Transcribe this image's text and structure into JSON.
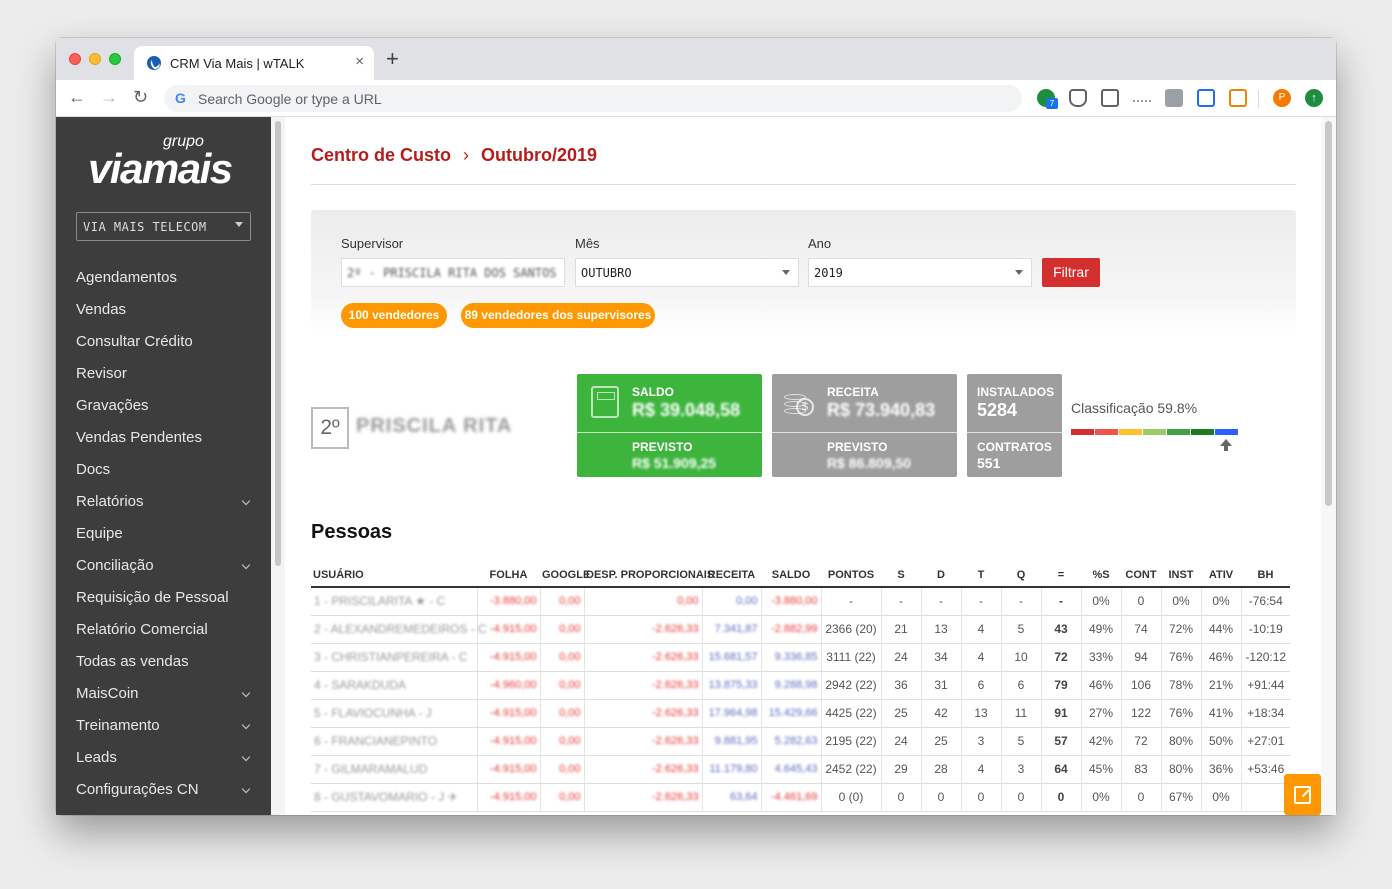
{
  "browser": {
    "tab_title": "CRM Via Mais | wTALK",
    "tab_close": "×",
    "new_tab": "+",
    "omnibox_placeholder": "Search Google or type a URL",
    "ext_badge": "7",
    "avatar_letter": "P"
  },
  "sidebar": {
    "logo_grupo": "grupo",
    "logo_main": "viamais",
    "company": "VIA MAIS TELECOM",
    "items": [
      {
        "label": "Agendamentos",
        "expandable": false
      },
      {
        "label": "Vendas",
        "expandable": false
      },
      {
        "label": "Consultar Crédito",
        "expandable": false
      },
      {
        "label": "Revisor",
        "expandable": false
      },
      {
        "label": "Gravações",
        "expandable": false
      },
      {
        "label": "Vendas Pendentes",
        "expandable": false
      },
      {
        "label": "Docs",
        "expandable": false
      },
      {
        "label": "Relatórios",
        "expandable": true
      },
      {
        "label": "Equipe",
        "expandable": false
      },
      {
        "label": "Conciliação",
        "expandable": true
      },
      {
        "label": "Requisição de Pessoal",
        "expandable": false
      },
      {
        "label": "Relatório Comercial",
        "expandable": false
      },
      {
        "label": "Todas as vendas",
        "expandable": false
      },
      {
        "label": "MaisCoin",
        "expandable": true
      },
      {
        "label": "Treinamento",
        "expandable": true
      },
      {
        "label": "Leads",
        "expandable": true
      },
      {
        "label": "Configurações CN",
        "expandable": true
      }
    ]
  },
  "breadcrumb": {
    "root": "Centro de Custo",
    "sep": "›",
    "current": "Outubro/2019"
  },
  "filters": {
    "supervisor_label": "Supervisor",
    "supervisor_value": "2º - PRISCILA RITA DOS SANTOS",
    "month_label": "Mês",
    "month_value": "OUTUBRO",
    "year_label": "Ano",
    "year_value": "2019",
    "filter_button": "Filtrar",
    "pill_sellers": "100 vendedores",
    "pill_supervisors": "89 vendedores dos supervisores"
  },
  "supervisor": {
    "rank": "2º",
    "name": "PRISCILA RITA"
  },
  "cards": {
    "saldo_label": "SALDO",
    "saldo_value": "R$ 39.048,58",
    "saldo_previsto_label": "PREVISTO",
    "saldo_previsto_value": "R$ 51.909,25",
    "receita_label": "RECEITA",
    "receita_value": "R$ 73.940,83",
    "receita_previsto_label": "PREVISTO",
    "receita_previsto_value": "R$ 86.809,50",
    "instalados_label": "INSTALADOS",
    "instalados_value": "5284",
    "contratos_label": "CONTRATOS",
    "contratos_value": "551",
    "colors": {
      "saldo": "#3db53d",
      "receita": "#9e9e9e",
      "instalados": "#9e9e9e"
    }
  },
  "classification": {
    "label": "Classificação 59.8%",
    "value": 59.8,
    "segment_colors": [
      "#d32f2f",
      "#ef5350",
      "#fbc02d",
      "#9ccc65",
      "#43a047",
      "#1b7a1b",
      "#2962ff"
    ]
  },
  "people": {
    "title": "Pessoas",
    "columns": [
      "USUÁRIO",
      "FOLHA",
      "GOOGLE",
      "DESP. PROPORCIONAIS",
      "RECEITA",
      "SALDO",
      "PONTOS",
      "S",
      "D",
      "T",
      "Q",
      "=",
      "%S",
      "CONT",
      "INST",
      "ATIV",
      "BH"
    ],
    "rows": [
      {
        "user": "1 - PRISCILARITA ★ - C",
        "folha": "-3.880,00",
        "google": "0,00",
        "desp": "0,00",
        "receita": "0,00",
        "saldo": "-3.880,00",
        "pontos": "-",
        "s": "-",
        "d": "-",
        "t": "-",
        "q": "-",
        "eq": "-",
        "ps": "0%",
        "cont": "0",
        "inst": "0%",
        "ativ": "0%",
        "bh": "-76:54"
      },
      {
        "user": "2 - ALEXANDREMEDEIROS - C",
        "folha": "-4.915,00",
        "google": "0,00",
        "desp": "-2.626,33",
        "receita": "7.341,87",
        "saldo": "-2.882,99",
        "pontos": "2366 (20)",
        "s": "21",
        "d": "13",
        "t": "4",
        "q": "5",
        "eq": "43",
        "ps": "49%",
        "cont": "74",
        "inst": "72%",
        "ativ": "44%",
        "bh": "-10:19"
      },
      {
        "user": "3 - CHRISTIANPEREIRA - C",
        "folha": "-4.915,00",
        "google": "0,00",
        "desp": "-2.626,33",
        "receita": "15.681,57",
        "saldo": "9.336,85",
        "pontos": "3111 (22)",
        "s": "24",
        "d": "34",
        "t": "4",
        "q": "10",
        "eq": "72",
        "ps": "33%",
        "cont": "94",
        "inst": "76%",
        "ativ": "46%",
        "bh": "-120:12"
      },
      {
        "user": "4 - SARAKDUDA",
        "folha": "-4.960,00",
        "google": "0,00",
        "desp": "-2.626,33",
        "receita": "13.875,33",
        "saldo": "9.288,98",
        "pontos": "2942 (22)",
        "s": "36",
        "d": "31",
        "t": "6",
        "q": "6",
        "eq": "79",
        "ps": "46%",
        "cont": "106",
        "inst": "78%",
        "ativ": "21%",
        "bh": "+91:44"
      },
      {
        "user": "5 - FLAVIOCUNHA - J",
        "folha": "-4.915,00",
        "google": "0,00",
        "desp": "-2.626,33",
        "receita": "17.964,98",
        "saldo": "15.429,66",
        "pontos": "4425 (22)",
        "s": "25",
        "d": "42",
        "t": "13",
        "q": "11",
        "eq": "91",
        "ps": "27%",
        "cont": "122",
        "inst": "76%",
        "ativ": "41%",
        "bh": "+18:34"
      },
      {
        "user": "6 - FRANCIANEPINTO",
        "folha": "-4.915,00",
        "google": "0,00",
        "desp": "-2.626,33",
        "receita": "9.881,95",
        "saldo": "5.282,63",
        "pontos": "2195 (22)",
        "s": "24",
        "d": "25",
        "t": "3",
        "q": "5",
        "eq": "57",
        "ps": "42%",
        "cont": "72",
        "inst": "80%",
        "ativ": "50%",
        "bh": "+27:01"
      },
      {
        "user": "7 - GILMARAMALUD",
        "folha": "-4.915,00",
        "google": "0,00",
        "desp": "-2.626,33",
        "receita": "11.179,80",
        "saldo": "4.645,43",
        "pontos": "2452 (22)",
        "s": "29",
        "d": "28",
        "t": "4",
        "q": "3",
        "eq": "64",
        "ps": "45%",
        "cont": "83",
        "inst": "80%",
        "ativ": "36%",
        "bh": "+53:46"
      },
      {
        "user": "8 - GUSTAVOMARIO - J ✈",
        "folha": "-4.915,00",
        "google": "0,00",
        "desp": "-2.626,33",
        "receita": "63,64",
        "saldo": "-4.461,69",
        "pontos": "0 (0)",
        "s": "0",
        "d": "0",
        "t": "0",
        "q": "0",
        "eq": "0",
        "ps": "0%",
        "cont": "0",
        "inst": "67%",
        "ativ": "0%",
        "bh": ""
      }
    ]
  }
}
